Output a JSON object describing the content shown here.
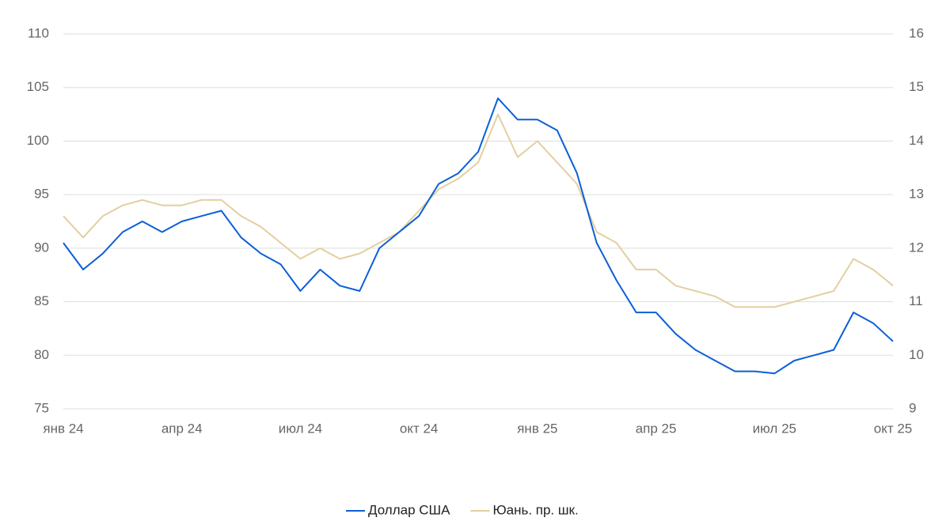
{
  "chart_data": {
    "type": "line",
    "categories": [
      "янв 24",
      null,
      null,
      null,
      null,
      null,
      "апр 24",
      null,
      null,
      null,
      null,
      null,
      "июл 24",
      null,
      null,
      null,
      null,
      null,
      "окт 24",
      null,
      null,
      null,
      null,
      null,
      "янв 25",
      null,
      null,
      null,
      null,
      null,
      "апр 25",
      null,
      null,
      null,
      null,
      null,
      "июл 25",
      null,
      null,
      null,
      null,
      null,
      "окт 25"
    ],
    "series": [
      {
        "name": "Доллар США",
        "color": "#0a5fd8",
        "values": [
          90.5,
          88,
          89.5,
          91.5,
          92.5,
          91.5,
          92.5,
          93,
          93.5,
          91,
          89.5,
          88.5,
          86,
          88,
          86.5,
          86,
          90,
          91.5,
          93,
          96,
          97,
          99,
          104,
          102,
          102,
          101,
          97,
          90.5,
          87,
          84,
          84,
          82,
          80.5,
          79.5,
          78.5,
          78.5,
          78.3,
          79.5,
          80,
          80.5,
          84,
          83,
          81.3
        ]
      },
      {
        "name": "Юань. пр. шк.",
        "color": "#e3cfa0",
        "axis": "y2",
        "values": [
          12.6,
          12.2,
          12.6,
          12.8,
          12.9,
          12.8,
          12.8,
          12.9,
          12.9,
          12.6,
          12.4,
          12.1,
          11.8,
          12.0,
          11.8,
          11.9,
          12.1,
          12.3,
          12.7,
          13.1,
          13.3,
          13.6,
          14.5,
          13.7,
          14.0,
          13.6,
          13.2,
          12.3,
          12.1,
          11.6,
          11.6,
          11.3,
          11.2,
          11.1,
          10.9,
          10.9,
          10.9,
          11.0,
          11.1,
          11.2,
          11.8,
          11.6,
          11.3
        ]
      }
    ],
    "ylim": [
      75,
      110
    ],
    "yticks": [
      75,
      80,
      85,
      90,
      95,
      100,
      105,
      110
    ],
    "y2lim": [
      9,
      16
    ],
    "y2ticks": [
      9,
      10,
      11,
      12,
      13,
      14,
      15,
      16
    ],
    "grid": true
  }
}
